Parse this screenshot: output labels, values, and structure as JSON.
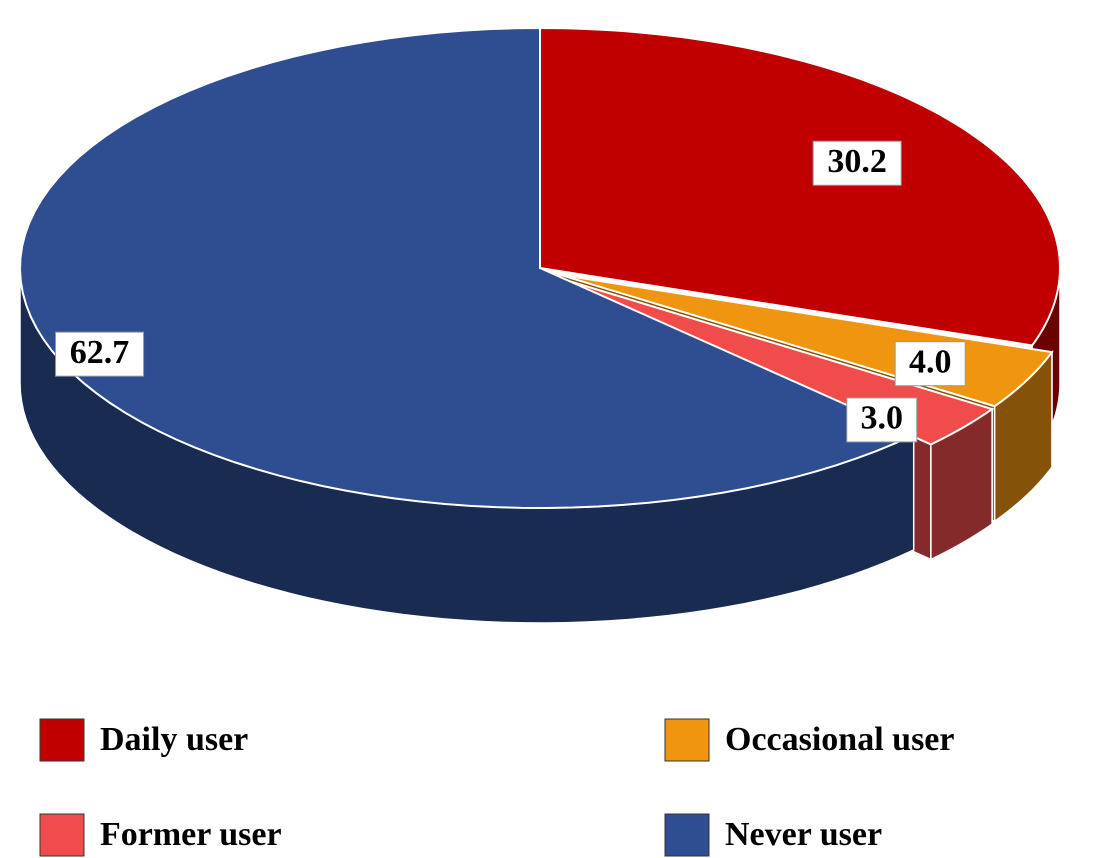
{
  "chart_data": {
    "type": "pie",
    "categories": [
      "Daily user",
      "Occasional user",
      "Former user",
      "Never user"
    ],
    "values": [
      30.2,
      4.0,
      3.0,
      62.7
    ],
    "value_labels": [
      "30.2",
      "4.0",
      "3.0",
      "62.7"
    ],
    "colors": [
      "#c00000",
      "#f0950f",
      "#f04c4c",
      "#2e4e91"
    ],
    "legend": "bottom"
  }
}
